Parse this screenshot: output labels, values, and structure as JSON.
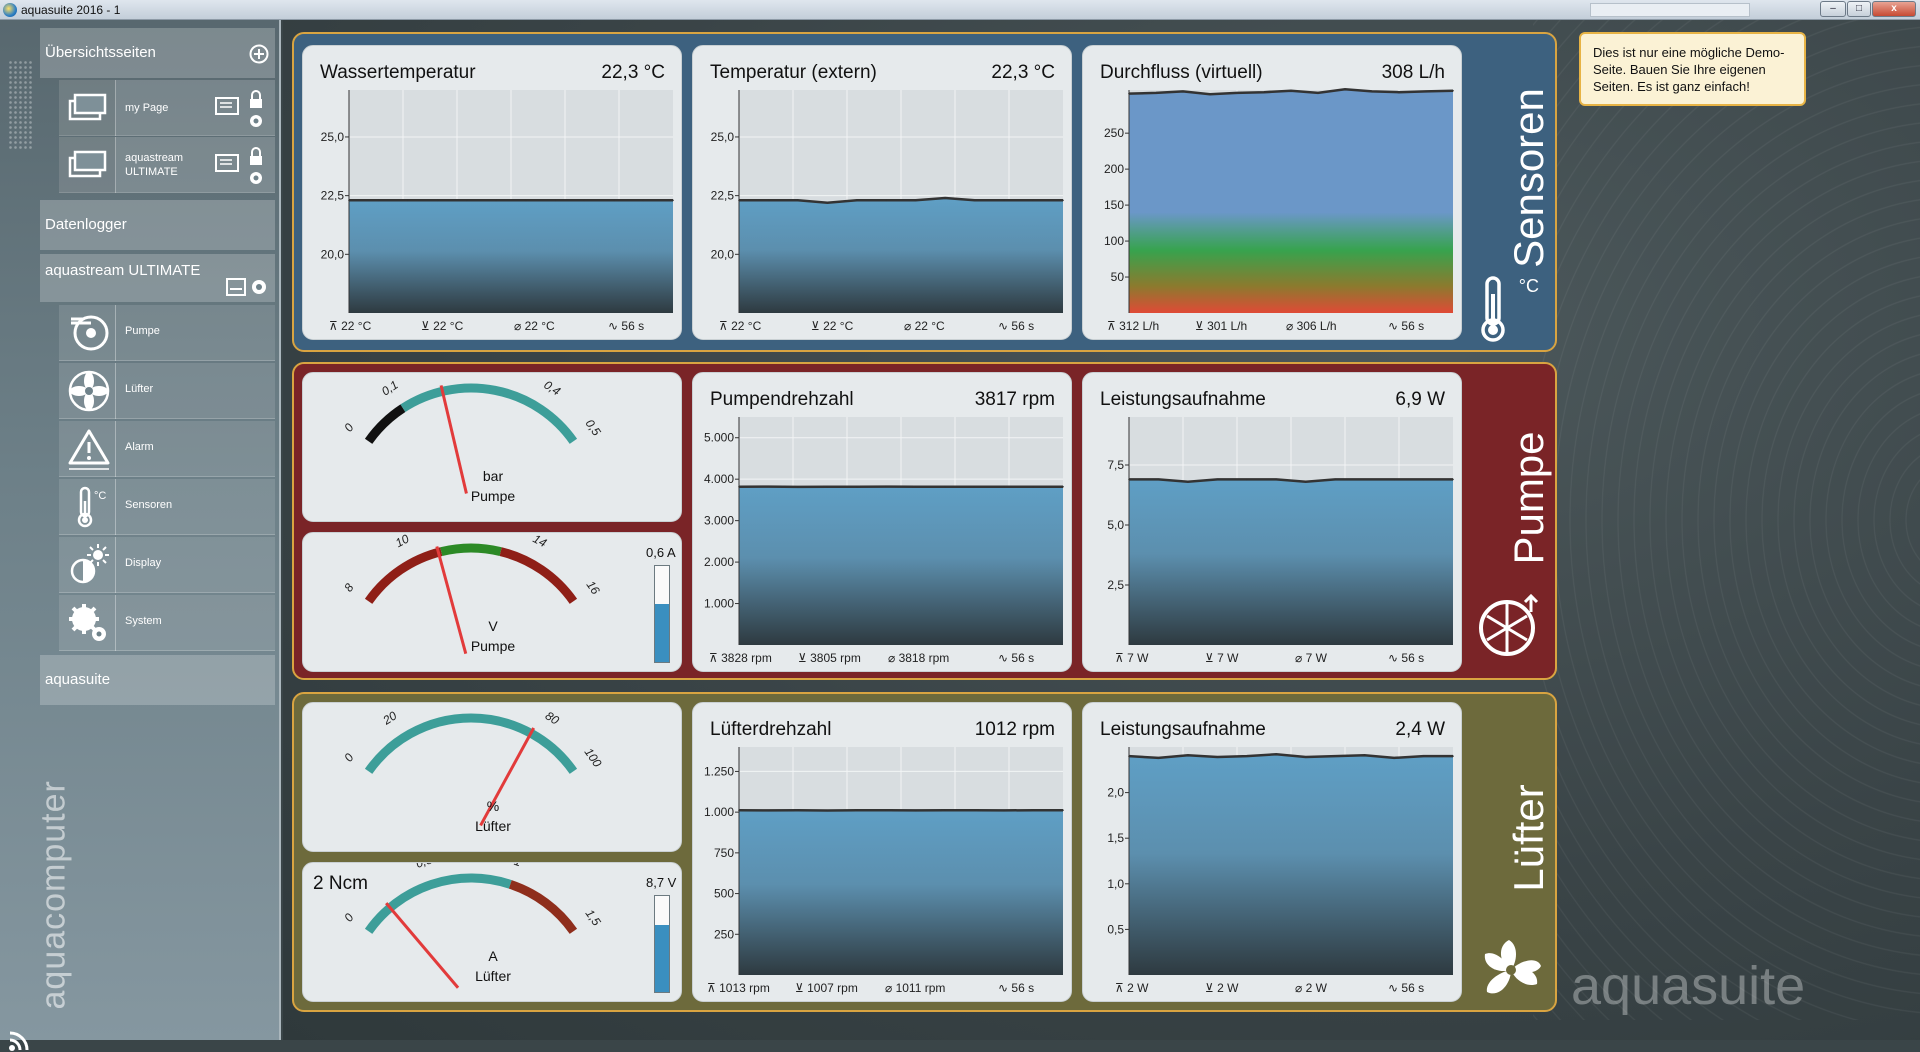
{
  "window": {
    "title": "aquasuite 2016 - 1",
    "min": "–",
    "max": "□",
    "close": "x"
  },
  "sidebar": {
    "overview_header": "Übersichtsseiten",
    "pages": [
      {
        "label": "my Page"
      },
      {
        "label": "aquastream ULTIMATE"
      }
    ],
    "datalogger": "Datenlogger",
    "device_header": "aquastream ULTIMATE",
    "items": [
      {
        "label": "Pumpe",
        "icon": "pump-icon"
      },
      {
        "label": "Lüfter",
        "icon": "fan-icon"
      },
      {
        "label": "Alarm",
        "icon": "alarm-icon"
      },
      {
        "label": "Sensoren",
        "icon": "thermometer-icon"
      },
      {
        "label": "Display",
        "icon": "display-icon"
      },
      {
        "label": "System",
        "icon": "gear-icon"
      }
    ],
    "aquasuite": "aquasuite",
    "brand": "aquacomputer"
  },
  "note": "Dies ist nur eine mögliche Demo-Seite. Bauen Sie Ihre eigenen Seiten. Es ist ganz einfach!",
  "brand": "aquasuite",
  "groups": {
    "sensoren": {
      "label": "Sensoren",
      "unit": "°C",
      "color": "#3d617f"
    },
    "pumpe": {
      "label": "Pumpe",
      "color": "#7a2427"
    },
    "luefter": {
      "label": "Lüfter",
      "color": "#6d6a3c"
    }
  },
  "tiles": {
    "water": {
      "title": "Wassertemperatur",
      "value": "22,3 °C",
      "f1": "22 °C",
      "f2": "22 °C",
      "f3": "22 °C",
      "f4": "56 s"
    },
    "ext": {
      "title": "Temperatur (extern)",
      "value": "22,3 °C",
      "f1": "22 °C",
      "f2": "22 °C",
      "f3": "22 °C",
      "f4": "56 s"
    },
    "flow": {
      "title": "Durchfluss (virtuell)",
      "value": "308 L/h",
      "f1": "312 L/h",
      "f2": "301 L/h",
      "f3": "306 L/h",
      "f4": "56 s"
    },
    "pumprpm": {
      "title": "Pumpendrehzahl",
      "value": "3817 rpm",
      "f1": "3828 rpm",
      "f2": "3805 rpm",
      "f3": "3818 rpm",
      "f4": "56 s"
    },
    "pumppow": {
      "title": "Leistungsaufnahme",
      "value": "6,9 W",
      "f1": "7 W",
      "f2": "7 W",
      "f3": "7 W",
      "f4": "56 s"
    },
    "fanrpm": {
      "title": "Lüfterdrehzahl",
      "value": "1012 rpm",
      "f1": "1013 rpm",
      "f2": "1007 rpm",
      "f3": "1011 rpm",
      "f4": "56 s"
    },
    "fanpow": {
      "title": "Leistungsaufnahme",
      "value": "2,4 W",
      "f1": "2 W",
      "f2": "2 W",
      "f3": "2 W",
      "f4": "56 s"
    }
  },
  "gauges": {
    "pressure": {
      "unit": "bar",
      "label": "Pumpe",
      "value": 0.19
    },
    "voltage": {
      "unit": "V",
      "label": "Pumpe",
      "value": 10.9,
      "current": "0,6 A",
      "current_level": 0.6
    },
    "fanpct": {
      "unit": "%",
      "label": "Lüfter",
      "value": 76
    },
    "fanamp": {
      "unit": "A",
      "label": "Lüfter",
      "value": 0.2,
      "torque": "2 Ncm",
      "voltage": "8,7 V",
      "voltage_level": 0.7
    }
  },
  "chart_data": [
    {
      "type": "area",
      "title": "Wassertemperatur",
      "ylim": [
        17.5,
        27
      ],
      "yticks": [
        "25,0",
        "22,5",
        "20,0"
      ],
      "ytick_values": [
        25,
        22.5,
        20
      ],
      "values": [
        22.3,
        22.3,
        22.3,
        22.3,
        22.3,
        22.3,
        22.3,
        22.3,
        22.3,
        22.3,
        22.3,
        22.3
      ]
    },
    {
      "type": "area",
      "title": "Temperatur (extern)",
      "ylim": [
        17.5,
        27
      ],
      "yticks": [
        "25,0",
        "22,5",
        "20,0"
      ],
      "ytick_values": [
        25,
        22.5,
        20
      ],
      "values": [
        22.3,
        22.3,
        22.3,
        22.2,
        22.3,
        22.3,
        22.3,
        22.4,
        22.3,
        22.3,
        22.3,
        22.3
      ]
    },
    {
      "type": "area",
      "title": "Durchfluss (virtuell)",
      "ylim": [
        0,
        310
      ],
      "yticks": [
        "250",
        "200",
        "150",
        "100",
        "50"
      ],
      "ytick_values": [
        250,
        200,
        150,
        100,
        50
      ],
      "values": [
        305,
        306,
        308,
        304,
        306,
        307,
        309,
        306,
        311,
        308,
        307,
        308,
        309
      ]
    },
    {
      "type": "area",
      "title": "Pumpendrehzahl",
      "ylim": [
        0,
        5500
      ],
      "yticks": [
        "5.000",
        "4.000",
        "3.000",
        "2.000",
        "1.000"
      ],
      "ytick_values": [
        5000,
        4000,
        3000,
        2000,
        1000
      ],
      "values": [
        3818,
        3820,
        3815,
        3818,
        3817,
        3822,
        3816,
        3818,
        3817,
        3819,
        3817,
        3818
      ]
    },
    {
      "type": "area",
      "title": "Leistungsaufnahme",
      "ylim": [
        0,
        9.5
      ],
      "yticks": [
        "7,5",
        "5,0",
        "2,5"
      ],
      "ytick_values": [
        7.5,
        5,
        2.5
      ],
      "values": [
        6.9,
        6.9,
        6.8,
        6.9,
        6.9,
        6.9,
        6.8,
        6.9,
        6.9,
        6.9,
        6.9,
        6.9
      ]
    },
    {
      "type": "area",
      "title": "Lüfterdrehzahl",
      "ylim": [
        0,
        1400
      ],
      "yticks": [
        "1.250",
        "1.000",
        "750",
        "500",
        "250"
      ],
      "ytick_values": [
        1250,
        1000,
        750,
        500,
        250
      ],
      "values": [
        1012,
        1011,
        1012,
        1010,
        1012,
        1012,
        1011,
        1012,
        1012,
        1011,
        1012,
        1012
      ]
    },
    {
      "type": "area",
      "title": "Leistungsaufnahme",
      "ylim": [
        0,
        2.5
      ],
      "yticks": [
        "2,0",
        "1,5",
        "1,0",
        "0,5"
      ],
      "ytick_values": [
        2,
        1.5,
        1,
        0.5
      ],
      "values": [
        2.4,
        2.38,
        2.41,
        2.39,
        2.4,
        2.42,
        2.39,
        2.4,
        2.41,
        2.38,
        2.4,
        2.4
      ]
    }
  ]
}
